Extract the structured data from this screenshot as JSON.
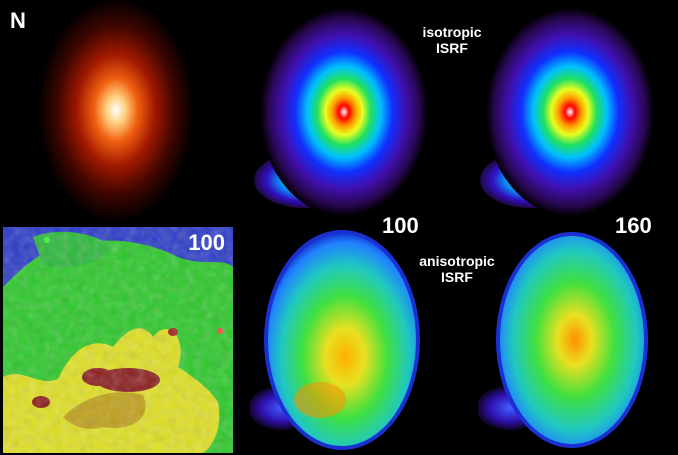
{
  "labels": {
    "orientation": "N",
    "map_value": "100",
    "col1_value": "100",
    "col2_value": "160",
    "isotropic_line1": "isotropic",
    "isotropic_line2": "ISRF",
    "anisotropic_line1": "anisotropic",
    "anisotropic_line2": "ISRF"
  },
  "colors": {
    "background": "#000000",
    "label": "#ffffff"
  }
}
